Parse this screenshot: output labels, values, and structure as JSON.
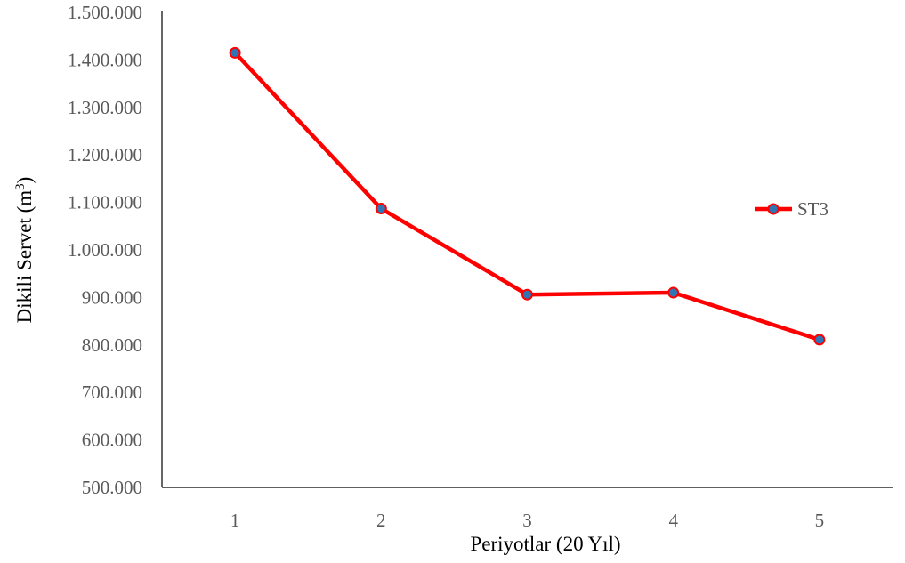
{
  "chart_data": {
    "type": "line",
    "title": "",
    "xlabel": "Periyotlar (20 Yıl)",
    "ylabel": "Dikili  Servet (m",
    "ylabel_superscript": "3",
    "ylabel_suffix": ")",
    "categories": [
      "1",
      "2",
      "3",
      "4",
      "5"
    ],
    "ylim": [
      500000,
      1500000
    ],
    "yticks": [
      500000,
      600000,
      700000,
      800000,
      900000,
      1000000,
      1100000,
      1200000,
      1300000,
      1400000,
      1500000
    ],
    "ytick_labels": [
      "500.000",
      "600.000",
      "700.000",
      "800.000",
      "900.000",
      "1.000.000",
      "1.100.000",
      "1.200.000",
      "1.300.000",
      "1.400.000",
      "1.500.000"
    ],
    "grid": false,
    "legend_position": "right",
    "series": [
      {
        "name": "ST3",
        "values": [
          1415000,
          1087000,
          906000,
          910000,
          811000
        ],
        "line_color": "#ff0000",
        "marker_color": "#2e75b6"
      }
    ]
  }
}
